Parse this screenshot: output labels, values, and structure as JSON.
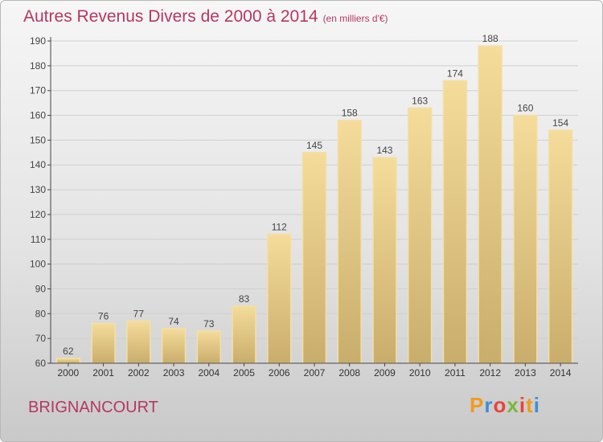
{
  "chart_data": {
    "type": "bar",
    "title": "Autres Revenus Divers de 2000 à 2014",
    "subtitle": "(en milliers d'€)",
    "xlabel": "",
    "ylabel": "",
    "categories": [
      "2000",
      "2001",
      "2002",
      "2003",
      "2004",
      "2005",
      "2006",
      "2007",
      "2008",
      "2009",
      "2010",
      "2011",
      "2012",
      "2013",
      "2014"
    ],
    "values": [
      62,
      76,
      77,
      74,
      73,
      83,
      112,
      145,
      158,
      143,
      163,
      174,
      188,
      160,
      154
    ],
    "ylim": [
      60,
      190
    ],
    "yticks": [
      60,
      70,
      80,
      90,
      100,
      110,
      120,
      130,
      140,
      150,
      160,
      170,
      180,
      190
    ],
    "grid": true,
    "legend": "none"
  },
  "footer": {
    "location": "BRIGNANCOURT"
  },
  "logo": {
    "text": "Proxiti"
  },
  "colors": {
    "title": "#b5385f",
    "bar": "#e6c98a",
    "bar_edge": "#f3dfa6",
    "grid": "#d0d0d0",
    "axis": "#444444"
  }
}
